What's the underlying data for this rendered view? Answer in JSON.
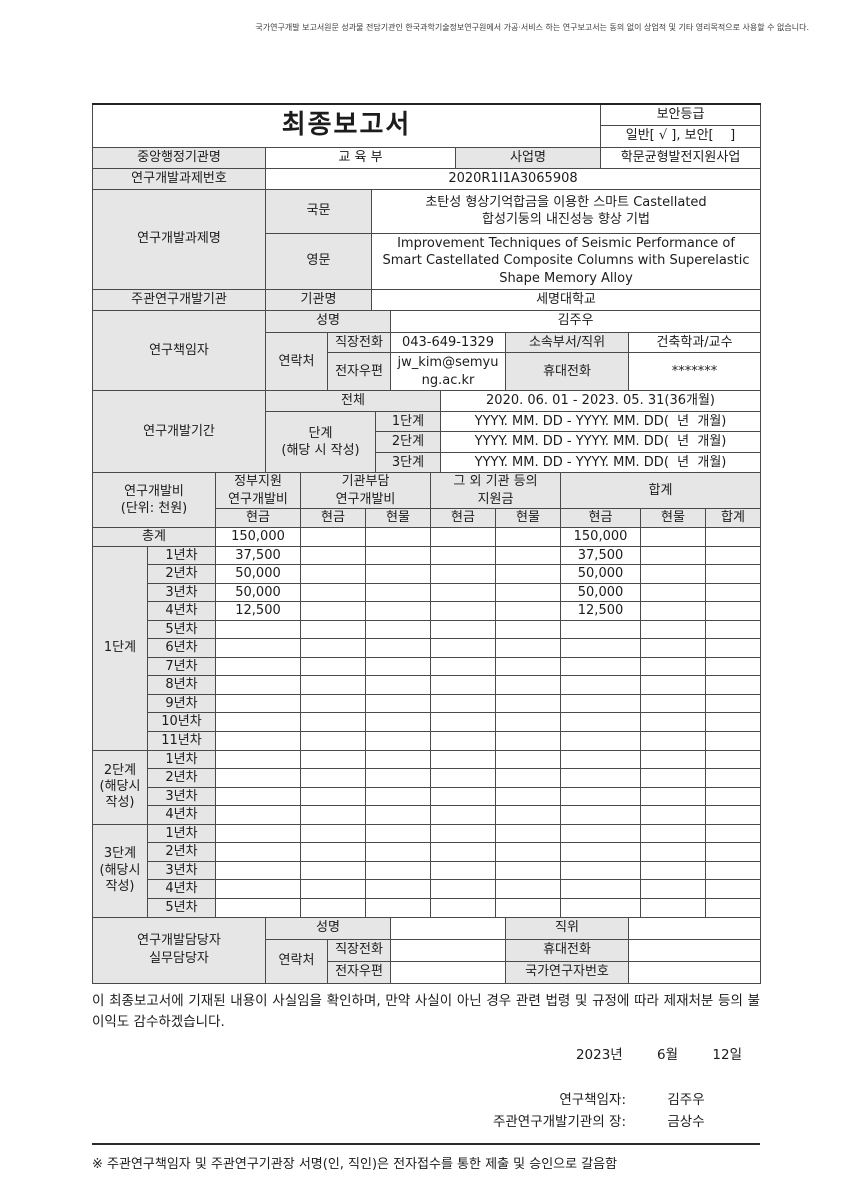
{
  "page": {
    "disclaimer": "국가연구개발 보고서원문 성과물 전담기관인 한국과학기술정보연구원에서 가공·서비스 하는 연구보고서는 동의 없이 상업적 및 기타 영리목적으로 사용할 수 없습니다."
  },
  "header": {
    "title": "최종보고서",
    "security_label": "보안등급",
    "security_value": "일반[ √ ], 보안[    ]"
  },
  "info": {
    "agency_label": "중앙행정기관명",
    "agency_value": "교 육 부",
    "program_label": "사업명",
    "program_value": "학문균형발전지원사업",
    "project_no_label": "연구개발과제번호",
    "project_no_value": "2020R1I1A3065908",
    "project_title_label": "연구개발과제명",
    "korean_label": "국문",
    "korean_title": "초탄성 형상기억합금을 이용한 스마트 Castellated\n합성기둥의 내진성능 향상 기법",
    "english_label": "영문",
    "english_title": "Improvement Techniques of Seismic Performance of\nSmart Castellated Composite Columns with Superelastic\nShape Memory Alloy",
    "lead_org_label": "주관연구개발기관",
    "org_name_label": "기관명",
    "org_name_value": "세명대학교"
  },
  "pi": {
    "label": "연구책임자",
    "name_label": "성명",
    "name_value": "김주우",
    "contact_label": "연락처",
    "work_phone_label": "직장전화",
    "work_phone_value": "043-649-1329",
    "dept_label": "소속부서/직위",
    "dept_value": "건축학과/교수",
    "email_label": "전자우편",
    "email_value": "jw_kim@semyung.ac.kr",
    "mobile_label": "휴대전화",
    "mobile_value": "*******"
  },
  "period": {
    "label": "연구개발기간",
    "total_label": "전체",
    "total_value": "2020. 06. 01 - 2023. 05. 31(36개월)",
    "stage_label": "단계\n(해당 시 작성)",
    "stages": [
      {
        "label": "1단계",
        "value": "YYYY. MM. DD - YYYY. MM. DD(  년  개월)"
      },
      {
        "label": "2단계",
        "value": "YYYY. MM. DD - YYYY. MM. DD(  년  개월)"
      },
      {
        "label": "3단계",
        "value": "YYYY. MM. DD - YYYY. MM. DD(  년  개월)"
      }
    ]
  },
  "budget": {
    "section_label": "연구개발비\n(단위: 천원)",
    "gov_label": "정부지원\n연구개발비",
    "inst_label": "기관부담\n연구개발비",
    "other_label": "그 외 기관 등의\n지원금",
    "sum_label": "합계",
    "sub_headers": [
      "현금",
      "현금",
      "현물",
      "현금",
      "현물",
      "현금",
      "현물",
      "합계"
    ],
    "total_label": "총계",
    "total_gov_cash": "150,000",
    "total_sum_cash": "150,000",
    "stages": [
      {
        "label": "1단계",
        "rows": [
          {
            "year": "1년차",
            "gov": "37,500",
            "sum": "37,500"
          },
          {
            "year": "2년차",
            "gov": "50,000",
            "sum": "50,000"
          },
          {
            "year": "3년차",
            "gov": "50,000",
            "sum": "50,000"
          },
          {
            "year": "4년차",
            "gov": "12,500",
            "sum": "12,500"
          },
          {
            "year": "5년차"
          },
          {
            "year": "6년차"
          },
          {
            "year": "7년차"
          },
          {
            "year": "8년차"
          },
          {
            "year": "9년차"
          },
          {
            "year": "10년차"
          },
          {
            "year": "11년차"
          }
        ]
      },
      {
        "label": "2단계\n(해당시\n작성)",
        "rows": [
          {
            "year": "1년차"
          },
          {
            "year": "2년차"
          },
          {
            "year": "3년차"
          },
          {
            "year": "4년차"
          }
        ]
      },
      {
        "label": "3단계\n(해당시\n작성)",
        "rows": [
          {
            "year": "1년차"
          },
          {
            "year": "2년차"
          },
          {
            "year": "3년차"
          },
          {
            "year": "4년차"
          },
          {
            "year": "5년차"
          }
        ]
      }
    ]
  },
  "staff": {
    "label": "연구개발담당자\n실무담당자",
    "name_label": "성명",
    "position_label": "직위",
    "contact_label": "연락처",
    "work_phone_label": "직장전화",
    "mobile_label": "휴대전화",
    "email_label": "전자우편",
    "researcher_no_label": "국가연구자번호"
  },
  "footer": {
    "declaration": "이 최종보고서에 기재된 내용이 사실임을 확인하며, 만약 사실이 아닌 경우 관련 법령 및 규정에 따라 제재처분 등의 불이익도 감수하겠습니다.",
    "date": "2023년        6월        12일",
    "pi_sign_label": "연구책임자:",
    "pi_sign_name": "김주우",
    "org_head_label": "주관연구개발기관의 장:",
    "org_head_name": "금상수",
    "note": "※ 주관연구책임자 및 주관연구기관장 서명(인, 직인)은 전자접수를 통한 제출 및 승인으로 갈음함"
  },
  "colors": {
    "cell_shade": "#e6e6e6",
    "border": "#4a4a4a"
  }
}
